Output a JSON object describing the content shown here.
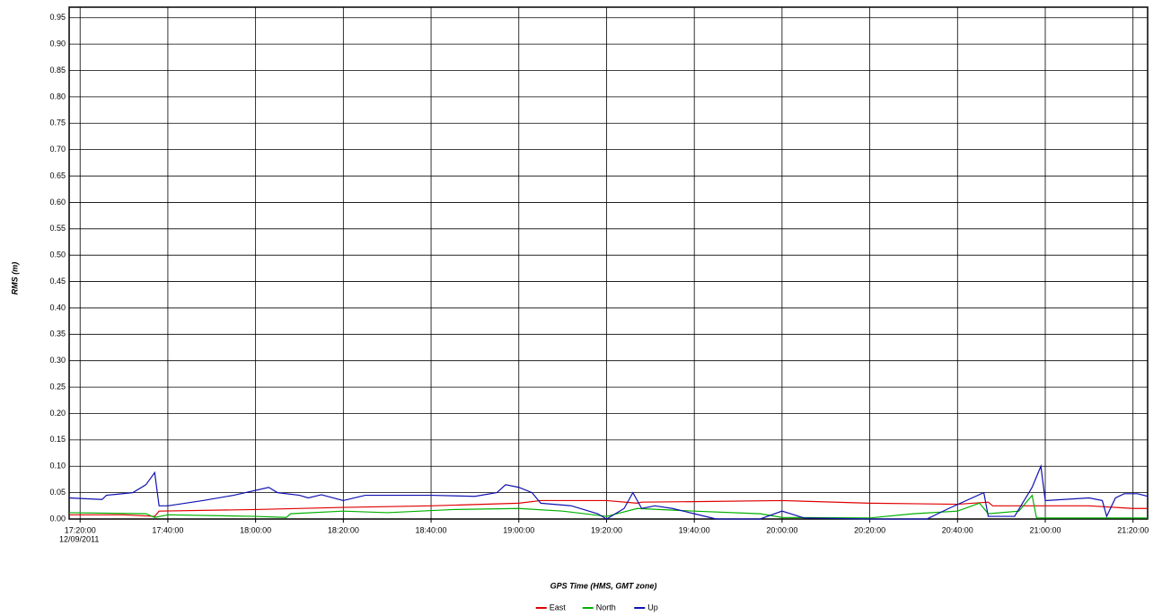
{
  "chart_data": {
    "type": "line",
    "x_label": "GPS Time (HMS, GMT zone)",
    "y_label": "RMS (m)",
    "x_date_label": "12/09/2011",
    "xlim": [
      "17:17:30",
      "21:23:20"
    ],
    "xticks": [
      "17:20:00",
      "17:40:00",
      "18:00:00",
      "18:20:00",
      "18:40:00",
      "19:00:00",
      "19:20:00",
      "19:40:00",
      "20:00:00",
      "20:20:00",
      "20:40:00",
      "21:00:00",
      "21:20:00"
    ],
    "ylim": [
      0,
      0.97
    ],
    "yticks": [
      {
        "value": 0,
        "label": "0.00"
      },
      {
        "value": 0.05,
        "label": "0.05"
      },
      {
        "value": 0.1,
        "label": "0.10"
      },
      {
        "value": 0.15,
        "label": "0.15"
      },
      {
        "value": 0.2,
        "label": "0.20"
      },
      {
        "value": 0.25,
        "label": "0.25"
      },
      {
        "value": 0.3,
        "label": "0.30"
      },
      {
        "value": 0.35,
        "label": "0.35"
      },
      {
        "value": 0.4,
        "label": "0.40"
      },
      {
        "value": 0.45,
        "label": "0.45"
      },
      {
        "value": 0.5,
        "label": "0.50"
      },
      {
        "value": 0.55,
        "label": "0.55"
      },
      {
        "value": 0.6,
        "label": "0.60"
      },
      {
        "value": 0.65,
        "label": "0.65"
      },
      {
        "value": 0.7,
        "label": "0.70"
      },
      {
        "value": 0.75,
        "label": "0.75"
      },
      {
        "value": 0.8,
        "label": "0.80"
      },
      {
        "value": 0.85,
        "label": "0.85"
      },
      {
        "value": 0.9,
        "label": "0.90"
      },
      {
        "value": 0.95,
        "label": "0.95"
      }
    ],
    "grid": true,
    "legend": "bottom",
    "series": [
      {
        "name": "East",
        "color": "#e00000",
        "x": [
          "17:17:30",
          "17:30:00",
          "17:37:00",
          "17:38:00",
          "18:00:00",
          "18:20:00",
          "18:40:00",
          "19:00:00",
          "19:05:00",
          "19:20:00",
          "19:27:00",
          "19:28:00",
          "19:40:00",
          "20:00:00",
          "20:20:00",
          "20:40:00",
          "20:47:00",
          "20:48:00",
          "21:10:00",
          "21:20:00",
          "21:23:20"
        ],
        "values": [
          0.008,
          0.008,
          0.005,
          0.015,
          0.018,
          0.022,
          0.025,
          0.03,
          0.035,
          0.035,
          0.03,
          0.032,
          0.033,
          0.035,
          0.03,
          0.028,
          0.032,
          0.025,
          0.025,
          0.02,
          0.02
        ]
      },
      {
        "name": "North",
        "color": "#00b000",
        "x": [
          "17:17:30",
          "17:35:00",
          "17:37:00",
          "17:40:00",
          "18:00:00",
          "18:07:00",
          "18:08:00",
          "18:20:00",
          "18:30:00",
          "18:45:00",
          "19:00:00",
          "19:10:00",
          "19:20:00",
          "19:27:00",
          "19:40:00",
          "19:55:00",
          "20:00:00",
          "20:20:00",
          "20:30:00",
          "20:40:00",
          "20:45:00",
          "20:47:00",
          "20:54:00",
          "20:57:00",
          "20:58:00",
          "21:23:20"
        ],
        "values": [
          0.012,
          0.01,
          0.003,
          0.008,
          0.005,
          0.003,
          0.01,
          0.015,
          0.012,
          0.018,
          0.02,
          0.015,
          0.005,
          0.02,
          0.015,
          0.01,
          0.003,
          0.002,
          0.01,
          0.015,
          0.03,
          0.01,
          0.015,
          0.045,
          0.002,
          0.002
        ]
      },
      {
        "name": "Up",
        "color": "#1010b0",
        "x": [
          "17:17:30",
          "17:25:00",
          "17:26:00",
          "17:32:00",
          "17:35:00",
          "17:37:00",
          "17:38:00",
          "17:40:00",
          "17:48:00",
          "17:55:00",
          "18:03:00",
          "18:05:00",
          "18:10:00",
          "18:12:00",
          "18:15:00",
          "18:20:00",
          "18:25:00",
          "18:40:00",
          "18:50:00",
          "18:55:00",
          "18:57:00",
          "19:00:00",
          "19:03:00",
          "19:05:00",
          "19:12:00",
          "19:18:00",
          "19:20:00",
          "19:24:00",
          "19:26:00",
          "19:28:00",
          "19:31:00",
          "19:35:00",
          "19:40:00",
          "19:45:00",
          "19:55:00",
          "20:00:00",
          "20:05:00",
          "20:20:00",
          "20:33:00",
          "20:38:00",
          "20:46:00",
          "20:47:00",
          "20:53:00",
          "20:57:00",
          "20:59:00",
          "21:00:00",
          "21:10:00",
          "21:13:00",
          "21:14:00",
          "21:16:00",
          "21:18:00",
          "21:21:00",
          "21:23:20"
        ],
        "values": [
          0.04,
          0.037,
          0.045,
          0.05,
          0.065,
          0.088,
          0.025,
          0.025,
          0.035,
          0.045,
          0.06,
          0.05,
          0.045,
          0.04,
          0.046,
          0.035,
          0.045,
          0.045,
          0.043,
          0.05,
          0.065,
          0.06,
          0.05,
          0.03,
          0.025,
          0.01,
          0,
          0.02,
          0.05,
          0.02,
          0.025,
          0.02,
          0.01,
          0,
          0,
          0.015,
          0.002,
          0,
          0,
          0.02,
          0.05,
          0.005,
          0.005,
          0.06,
          0.1,
          0.035,
          0.04,
          0.035,
          0.005,
          0.04,
          0.048,
          0.048,
          0.043
        ]
      }
    ]
  }
}
